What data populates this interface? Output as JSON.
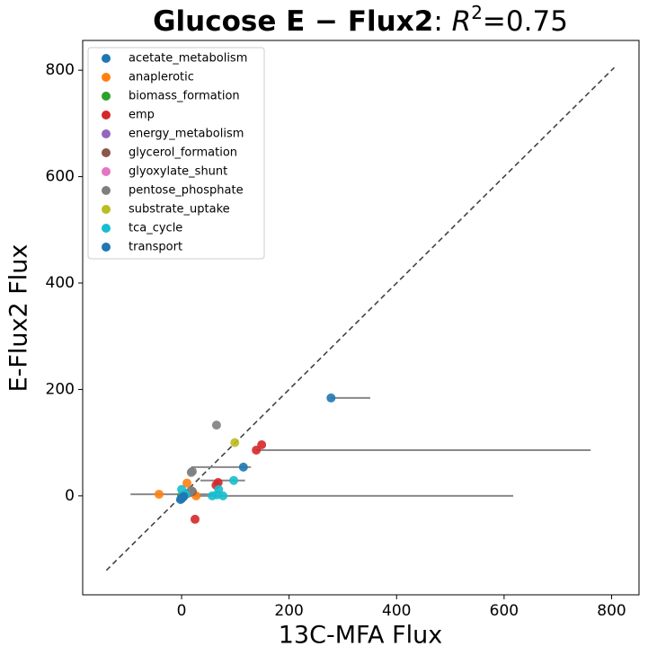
{
  "chart_data": {
    "type": "scatter",
    "title_parts": [
      "Glucose E − Flux2",
      ": ",
      "R",
      "2",
      "=0.75"
    ],
    "x_label": "13C-MFA Flux",
    "y_label": "E-Flux2 Flux",
    "xlim": [
      -184,
      851
    ],
    "ylim": [
      -186,
      856
    ],
    "xticks": [
      0,
      200,
      400,
      600,
      800
    ],
    "yticks": [
      0,
      200,
      400,
      600,
      800
    ],
    "identity_line": [
      -140,
      805
    ],
    "legend": "upper left",
    "series": [
      {
        "name": "acetate_metabolism",
        "color": "#1f77b4",
        "x": [
          115,
          0,
          3
        ],
        "y": [
          54,
          -5,
          -2
        ],
        "x_lower": [
          18,
          null,
          null
        ],
        "x_upper": [
          129,
          null,
          null
        ]
      },
      {
        "name": "anaplerotic",
        "color": "#ff7f0e",
        "x": [
          -42,
          10,
          27,
          20
        ],
        "y": [
          3,
          24,
          0,
          8
        ],
        "x_lower": [
          -95,
          null,
          null,
          null
        ],
        "x_upper": [
          65,
          null,
          null,
          null
        ]
      },
      {
        "name": "biomass_formation",
        "color": "#2ca02c",
        "x": [
          0
        ],
        "y": [
          0
        ],
        "x_lower": [
          null
        ],
        "x_upper": [
          null
        ]
      },
      {
        "name": "emp",
        "color": "#d62728",
        "x": [
          149,
          139,
          64,
          25,
          12,
          68
        ],
        "y": [
          96,
          86,
          20,
          -44,
          5,
          25
        ],
        "x_lower": [
          null,
          139,
          null,
          null,
          null,
          null
        ],
        "x_upper": [
          null,
          761,
          null,
          null,
          null,
          null
        ]
      },
      {
        "name": "energy_metabolism",
        "color": "#9467bd",
        "x": [
          5
        ],
        "y": [
          2
        ],
        "x_lower": [
          null
        ],
        "x_upper": [
          null
        ]
      },
      {
        "name": "glycerol_formation",
        "color": "#8c564b",
        "x": [
          20
        ],
        "y": [
          8
        ],
        "x_lower": [
          null
        ],
        "x_upper": [
          null
        ]
      },
      {
        "name": "glyoxylate_shunt",
        "color": "#e377c2",
        "x": [
          3
        ],
        "y": [
          1
        ],
        "x_lower": [
          null
        ],
        "x_upper": [
          null
        ]
      },
      {
        "name": "pentose_phosphate",
        "color": "#7f7f7f",
        "x": [
          65,
          18,
          20,
          18,
          14
        ],
        "y": [
          133,
          44,
          46,
          10,
          6
        ],
        "x_lower": [
          null,
          null,
          null,
          null,
          null
        ],
        "x_upper": [
          null,
          null,
          null,
          null,
          null
        ]
      },
      {
        "name": "substrate_uptake",
        "color": "#bcbd22",
        "x": [
          99
        ],
        "y": [
          100
        ],
        "x_lower": [
          null
        ],
        "x_upper": [
          null
        ]
      },
      {
        "name": "tca_cycle",
        "color": "#17becf",
        "x": [
          97,
          69,
          57,
          77,
          66,
          0,
          8
        ],
        "y": [
          29,
          12,
          0,
          0,
          2,
          12,
          3
        ],
        "x_lower": [
          35,
          null,
          0,
          null,
          null,
          null,
          null
        ],
        "x_upper": [
          118,
          null,
          617,
          null,
          null,
          null,
          null
        ]
      },
      {
        "name": "transport",
        "color": "#1f77b4",
        "x": [
          278,
          0,
          2,
          -2,
          4
        ],
        "y": [
          184,
          -5,
          -3,
          -7,
          -1
        ],
        "x_lower": [
          278,
          null,
          null,
          null,
          null
        ],
        "x_upper": [
          351,
          null,
          null,
          null,
          null
        ]
      }
    ]
  }
}
